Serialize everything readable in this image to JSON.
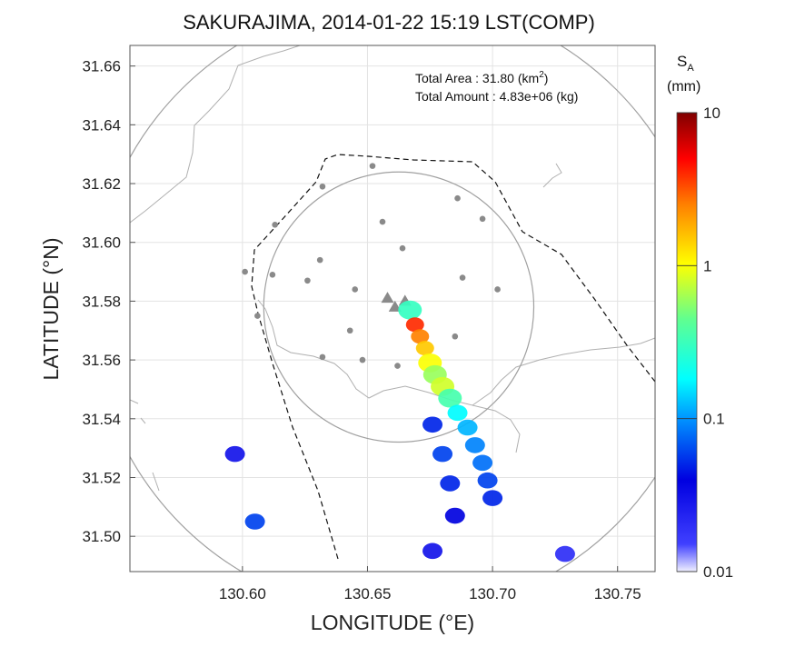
{
  "chart_data": {
    "type": "heatmap",
    "title": "SAKURAJIMA, 2014-01-22 15:19 LST(COMP)",
    "xlabel": "LONGITUDE (°E)",
    "ylabel": "LATITUDE (°N)",
    "xlim": [
      130.555,
      130.765
    ],
    "ylim": [
      31.488,
      31.667
    ],
    "xticks": [
      "130.60",
      "130.65",
      "130.70",
      "130.75"
    ],
    "xtick_values": [
      130.6,
      130.65,
      130.7,
      130.75
    ],
    "yticks": [
      "31.50",
      "31.52",
      "31.54",
      "31.56",
      "31.58",
      "31.60",
      "31.62",
      "31.64",
      "31.66"
    ],
    "ytick_values": [
      31.5,
      31.52,
      31.54,
      31.56,
      31.58,
      31.6,
      31.62,
      31.64,
      31.66
    ],
    "grid": true,
    "annotations": {
      "area_label": "Total Area   : 31.80 (km",
      "area_sup": "2",
      "area_end": ")",
      "amount_label": "Total Amount : 4.83e+06 (kg)"
    },
    "colorbar": {
      "label_main": "S",
      "label_sub": "A",
      "unit": "(mm)",
      "scale": "log",
      "range": [
        0.01,
        10
      ],
      "ticks": [
        "10",
        "1",
        "0.1",
        "0.01"
      ],
      "tick_values": [
        10,
        1,
        0.1,
        0.01
      ]
    },
    "range_circles": [
      {
        "center": [
          130.6625,
          31.578
        ],
        "radius_deg": 0.123
      },
      {
        "center": [
          130.6625,
          31.578
        ],
        "radius_deg": 0.054
      }
    ],
    "stations": [
      [
        130.652,
        31.626
      ],
      [
        130.632,
        31.619
      ],
      [
        130.686,
        31.615
      ],
      [
        130.613,
        31.606
      ],
      [
        130.656,
        31.607
      ],
      [
        130.696,
        31.608
      ],
      [
        130.664,
        31.598
      ],
      [
        130.631,
        31.594
      ],
      [
        130.601,
        31.59
      ],
      [
        130.612,
        31.589
      ],
      [
        130.688,
        31.588
      ],
      [
        130.626,
        31.587
      ],
      [
        130.645,
        31.584
      ],
      [
        130.702,
        31.584
      ],
      [
        130.606,
        31.575
      ],
      [
        130.643,
        31.57
      ],
      [
        130.685,
        31.568
      ],
      [
        130.632,
        31.561
      ],
      [
        130.648,
        31.56
      ],
      [
        130.662,
        31.558
      ]
    ],
    "vents": [
      [
        130.658,
        31.581
      ],
      [
        130.661,
        31.578
      ],
      [
        130.665,
        31.58
      ]
    ],
    "ash_fall": [
      {
        "lon": 130.667,
        "lat": 31.577,
        "value": 0.3
      },
      {
        "lon": 130.669,
        "lat": 31.572,
        "value": 4.0
      },
      {
        "lon": 130.671,
        "lat": 31.568,
        "value": 2.5
      },
      {
        "lon": 130.673,
        "lat": 31.564,
        "value": 1.5
      },
      {
        "lon": 130.675,
        "lat": 31.559,
        "value": 1.0
      },
      {
        "lon": 130.677,
        "lat": 31.555,
        "value": 0.6
      },
      {
        "lon": 130.68,
        "lat": 31.551,
        "value": 0.8
      },
      {
        "lon": 130.683,
        "lat": 31.547,
        "value": 0.35
      },
      {
        "lon": 130.686,
        "lat": 31.542,
        "value": 0.18
      },
      {
        "lon": 130.69,
        "lat": 31.537,
        "value": 0.12
      },
      {
        "lon": 130.693,
        "lat": 31.531,
        "value": 0.09
      },
      {
        "lon": 130.696,
        "lat": 31.525,
        "value": 0.08
      },
      {
        "lon": 130.698,
        "lat": 31.519,
        "value": 0.06
      },
      {
        "lon": 130.7,
        "lat": 31.513,
        "value": 0.05
      },
      {
        "lon": 130.676,
        "lat": 31.538,
        "value": 0.05
      },
      {
        "lon": 130.68,
        "lat": 31.528,
        "value": 0.06
      },
      {
        "lon": 130.683,
        "lat": 31.518,
        "value": 0.05
      },
      {
        "lon": 130.685,
        "lat": 31.507,
        "value": 0.04
      },
      {
        "lon": 130.676,
        "lat": 31.495,
        "value": 0.03
      },
      {
        "lon": 130.729,
        "lat": 31.494,
        "value": 0.02
      },
      {
        "lon": 130.605,
        "lat": 31.505,
        "value": 0.06
      },
      {
        "lon": 130.597,
        "lat": 31.528,
        "value": 0.03
      }
    ]
  }
}
